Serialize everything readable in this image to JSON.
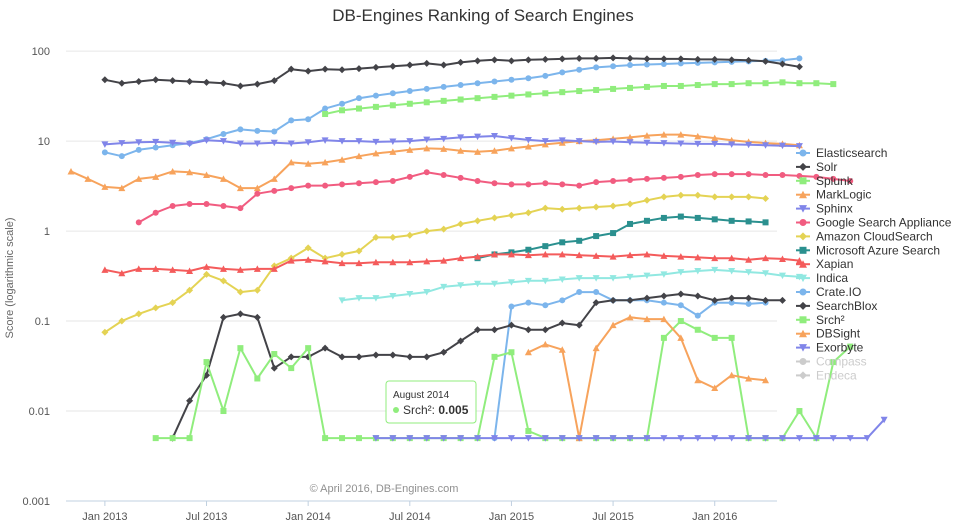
{
  "chart_data": {
    "type": "line",
    "title": "DB-Engines Ranking of Search Engines",
    "ylabel": "Score (logarithmic scale)",
    "yscale": "log",
    "ylim": [
      0.001,
      120
    ],
    "yticks": [
      {
        "v": 100,
        "label": "100"
      },
      {
        "v": 10,
        "label": "10"
      },
      {
        "v": 1,
        "label": "1"
      },
      {
        "v": 0.1,
        "label": "0.1"
      },
      {
        "v": 0.01,
        "label": "0.01"
      },
      {
        "v": 0.001,
        "label": "0.001"
      }
    ],
    "x_start": "2012-11",
    "xticks": [
      {
        "month": "2013-01",
        "label": "Jan 2013"
      },
      {
        "month": "2013-07",
        "label": "Jul 2013"
      },
      {
        "month": "2014-01",
        "label": "Jan 2014"
      },
      {
        "month": "2014-07",
        "label": "Jul 2014"
      },
      {
        "month": "2015-01",
        "label": "Jan 2015"
      },
      {
        "month": "2015-07",
        "label": "Jul 2015"
      },
      {
        "month": "2016-01",
        "label": "Jan 2016"
      }
    ],
    "grid": {
      "y": true,
      "x": false
    },
    "legend": "right",
    "credit": "© April 2016, DB-Engines.com",
    "tooltip": {
      "title": "August 2014",
      "series": "Srch²",
      "value": "0.005"
    },
    "series": [
      {
        "name": "Elasticsearch",
        "color": "#7cb5ec",
        "marker": "circle",
        "start": "2013-01",
        "values": [
          7.5,
          6.8,
          8,
          8.5,
          9,
          9.5,
          10.5,
          12,
          13.5,
          13,
          12.8,
          17,
          17.5,
          23,
          26,
          30,
          32,
          34,
          36,
          38,
          40,
          42,
          44,
          46,
          48,
          50,
          53,
          58,
          62,
          66,
          68,
          70,
          71,
          72,
          73,
          74,
          75,
          76,
          77,
          78,
          79,
          83
        ]
      },
      {
        "name": "Solr",
        "color": "#434348",
        "marker": "diamond",
        "start": "2013-01",
        "values": [
          48,
          44,
          46,
          48,
          47,
          46,
          45,
          44,
          41,
          43,
          47,
          63,
          60,
          63,
          62,
          64,
          66,
          68,
          70,
          73,
          70,
          75,
          78,
          80,
          78,
          80,
          81,
          82,
          83,
          83,
          84,
          83,
          82,
          82,
          82,
          81,
          81,
          80,
          79,
          77,
          72,
          67
        ]
      },
      {
        "name": "Splunk",
        "color": "#90ed7d",
        "marker": "square",
        "start": "2014-02",
        "values": [
          20,
          22,
          23,
          24,
          25,
          26,
          27,
          28,
          29,
          30,
          31,
          32,
          33,
          34,
          35,
          36,
          37,
          38,
          39,
          40,
          41,
          41,
          42,
          43,
          43,
          44,
          44,
          45,
          44,
          44,
          43
        ]
      },
      {
        "name": "MarkLogic",
        "color": "#f7a35c",
        "marker": "triangle",
        "start": "2012-11",
        "values": [
          4.6,
          3.8,
          3.1,
          3.0,
          3.8,
          4.0,
          4.6,
          4.5,
          4.2,
          3.8,
          3.0,
          3.0,
          3.8,
          5.8,
          5.6,
          5.8,
          6.2,
          6.8,
          7.3,
          7.6,
          8.0,
          8.3,
          8.2,
          7.8,
          7.6,
          7.8,
          8.3,
          8.7,
          9.2,
          9.6,
          10.0,
          10.2,
          10.6,
          11.0,
          11.5,
          11.8,
          11.8,
          11.3,
          10.8,
          10.2,
          9.8,
          9.5,
          9.3,
          9.0
        ]
      },
      {
        "name": "Sphinx",
        "color": "#8085e9",
        "marker": "triangle-down",
        "start": "2013-01",
        "values": [
          9.2,
          9.5,
          9.7,
          9.8,
          9.6,
          9.3,
          10.2,
          10.0,
          9.4,
          9.4,
          9.6,
          9.4,
          9.7,
          10.2,
          10.0,
          10.0,
          9.8,
          9.9,
          10.0,
          10.4,
          10.6,
          11,
          11.2,
          11.4,
          10.8,
          10.3,
          10.0,
          10.2,
          10.0,
          9.8,
          9.9,
          9.7,
          9.6,
          9.5,
          9.4,
          9.3,
          9.3,
          9.2,
          9.1,
          9.0,
          8.9,
          8.8
        ]
      },
      {
        "name": "Google Search Appliance",
        "color": "#f15c80",
        "marker": "circle",
        "start": "2013-03",
        "values": [
          1.25,
          1.6,
          1.9,
          2.0,
          2.0,
          1.9,
          1.8,
          2.6,
          2.8,
          3.0,
          3.2,
          3.2,
          3.3,
          3.4,
          3.5,
          3.6,
          4.0,
          4.5,
          4.2,
          3.9,
          3.6,
          3.4,
          3.3,
          3.3,
          3.4,
          3.3,
          3.2,
          3.5,
          3.6,
          3.7,
          3.8,
          3.9,
          4.0,
          4.2,
          4.3,
          4.3,
          4.3,
          4.2,
          4.2,
          4.1,
          4.0,
          3.8,
          3.6
        ]
      },
      {
        "name": "Amazon CloudSearch",
        "color": "#e4d354",
        "marker": "diamond",
        "start": "2013-01",
        "values": [
          0.075,
          0.1,
          0.12,
          0.14,
          0.16,
          0.22,
          0.33,
          0.28,
          0.21,
          0.22,
          0.41,
          0.5,
          0.65,
          0.5,
          0.55,
          0.6,
          0.85,
          0.85,
          0.9,
          1.0,
          1.05,
          1.2,
          1.3,
          1.4,
          1.5,
          1.6,
          1.8,
          1.75,
          1.8,
          1.85,
          1.9,
          2.0,
          2.2,
          2.4,
          2.5,
          2.5,
          2.4,
          2.4,
          2.4,
          2.3
        ]
      },
      {
        "name": "Microsoft Azure Search",
        "color": "#2b908f",
        "marker": "square",
        "start": "2014-11",
        "values": [
          0.5,
          0.55,
          0.58,
          0.62,
          0.68,
          0.75,
          0.78,
          0.88,
          0.95,
          1.2,
          1.3,
          1.4,
          1.45,
          1.4,
          1.35,
          1.3,
          1.28,
          1.25
        ]
      },
      {
        "name": "Xapian",
        "color": "#f45b5b",
        "marker": "triangle",
        "start": "2013-01",
        "values": [
          0.37,
          0.34,
          0.38,
          0.38,
          0.37,
          0.36,
          0.4,
          0.38,
          0.37,
          0.38,
          0.38,
          0.47,
          0.48,
          0.46,
          0.44,
          0.44,
          0.45,
          0.45,
          0.45,
          0.46,
          0.47,
          0.5,
          0.52,
          0.55,
          0.55,
          0.54,
          0.55,
          0.55,
          0.54,
          0.53,
          0.52,
          0.54,
          0.55,
          0.53,
          0.52,
          0.51,
          0.5,
          0.5,
          0.48,
          0.5,
          0.49,
          0.47
        ]
      },
      {
        "name": "Indica",
        "color": "#91e8e1",
        "marker": "triangle-down",
        "start": "2014-03",
        "values": [
          0.17,
          0.18,
          0.18,
          0.19,
          0.2,
          0.21,
          0.24,
          0.25,
          0.26,
          0.26,
          0.27,
          0.28,
          0.28,
          0.29,
          0.3,
          0.3,
          0.3,
          0.31,
          0.32,
          0.33,
          0.35,
          0.36,
          0.37,
          0.36,
          0.35,
          0.34,
          0.32,
          0.31
        ]
      },
      {
        "name": "Crate.IO",
        "color": "#7cb5ec",
        "marker": "circle",
        "start": "2014-12",
        "values": [
          0.005,
          0.145,
          0.16,
          0.15,
          0.17,
          0.21,
          0.21,
          0.17,
          0.17,
          0.17,
          0.16,
          0.15,
          0.115,
          0.16,
          0.16,
          0.155,
          0.16
        ]
      },
      {
        "name": "SearchBlox",
        "color": "#434348",
        "marker": "diamond",
        "start": "2013-05",
        "values": [
          0.005,
          0.013,
          0.025,
          0.11,
          0.12,
          0.11,
          0.03,
          0.04,
          0.04,
          0.05,
          0.04,
          0.04,
          0.042,
          0.042,
          0.04,
          0.04,
          0.045,
          0.06,
          0.08,
          0.08,
          0.09,
          0.08,
          0.08,
          0.095,
          0.09,
          0.16,
          0.17,
          0.17,
          0.18,
          0.19,
          0.2,
          0.19,
          0.17,
          0.18,
          0.18,
          0.17,
          0.17
        ]
      },
      {
        "name": "Srch²",
        "color": "#90ed7d",
        "marker": "square",
        "start": "2013-04",
        "values": [
          0.005,
          0.005,
          0.005,
          0.035,
          0.01,
          0.05,
          0.023,
          0.043,
          0.03,
          0.05,
          0.005,
          0.005,
          0.005,
          0.005,
          0.005,
          0.005,
          0.005,
          0.005,
          0.005,
          0.005,
          0.04,
          0.045,
          0.006,
          0.005,
          0.005,
          0.005,
          0.005,
          0.005,
          0.005,
          0.005,
          0.065,
          0.1,
          0.08,
          0.065,
          0.065,
          0.005,
          0.005,
          0.005,
          0.01,
          0.005,
          0.035,
          0.052
        ]
      },
      {
        "name": "DBSight",
        "color": "#f7a35c",
        "marker": "triangle",
        "start": "2015-02",
        "values": [
          0.045,
          0.055,
          0.048,
          0.005,
          0.05,
          0.09,
          0.11,
          0.105,
          0.105,
          0.065,
          0.022,
          0.018,
          0.025,
          0.023,
          0.022
        ]
      },
      {
        "name": "Exorbyte",
        "color": "#8085e9",
        "marker": "triangle-down",
        "start": "2014-05",
        "values": [
          0.005,
          0.005,
          0.005,
          0.005,
          0.005,
          0.005,
          0.005,
          0.005,
          0.005,
          0.005,
          0.005,
          0.005,
          0.005,
          0.005,
          0.005,
          0.005,
          0.005,
          0.005,
          0.005,
          0.005,
          0.005,
          0.005,
          0.005,
          0.005,
          0.005,
          0.005,
          0.005,
          0.005,
          0.005,
          0.005,
          0.008
        ]
      },
      {
        "name": "Compass",
        "color": "#cccccc",
        "marker": "circle",
        "hidden": true,
        "values": []
      },
      {
        "name": "Endeca",
        "color": "#cccccc",
        "marker": "diamond",
        "hidden": true,
        "values": []
      }
    ]
  }
}
